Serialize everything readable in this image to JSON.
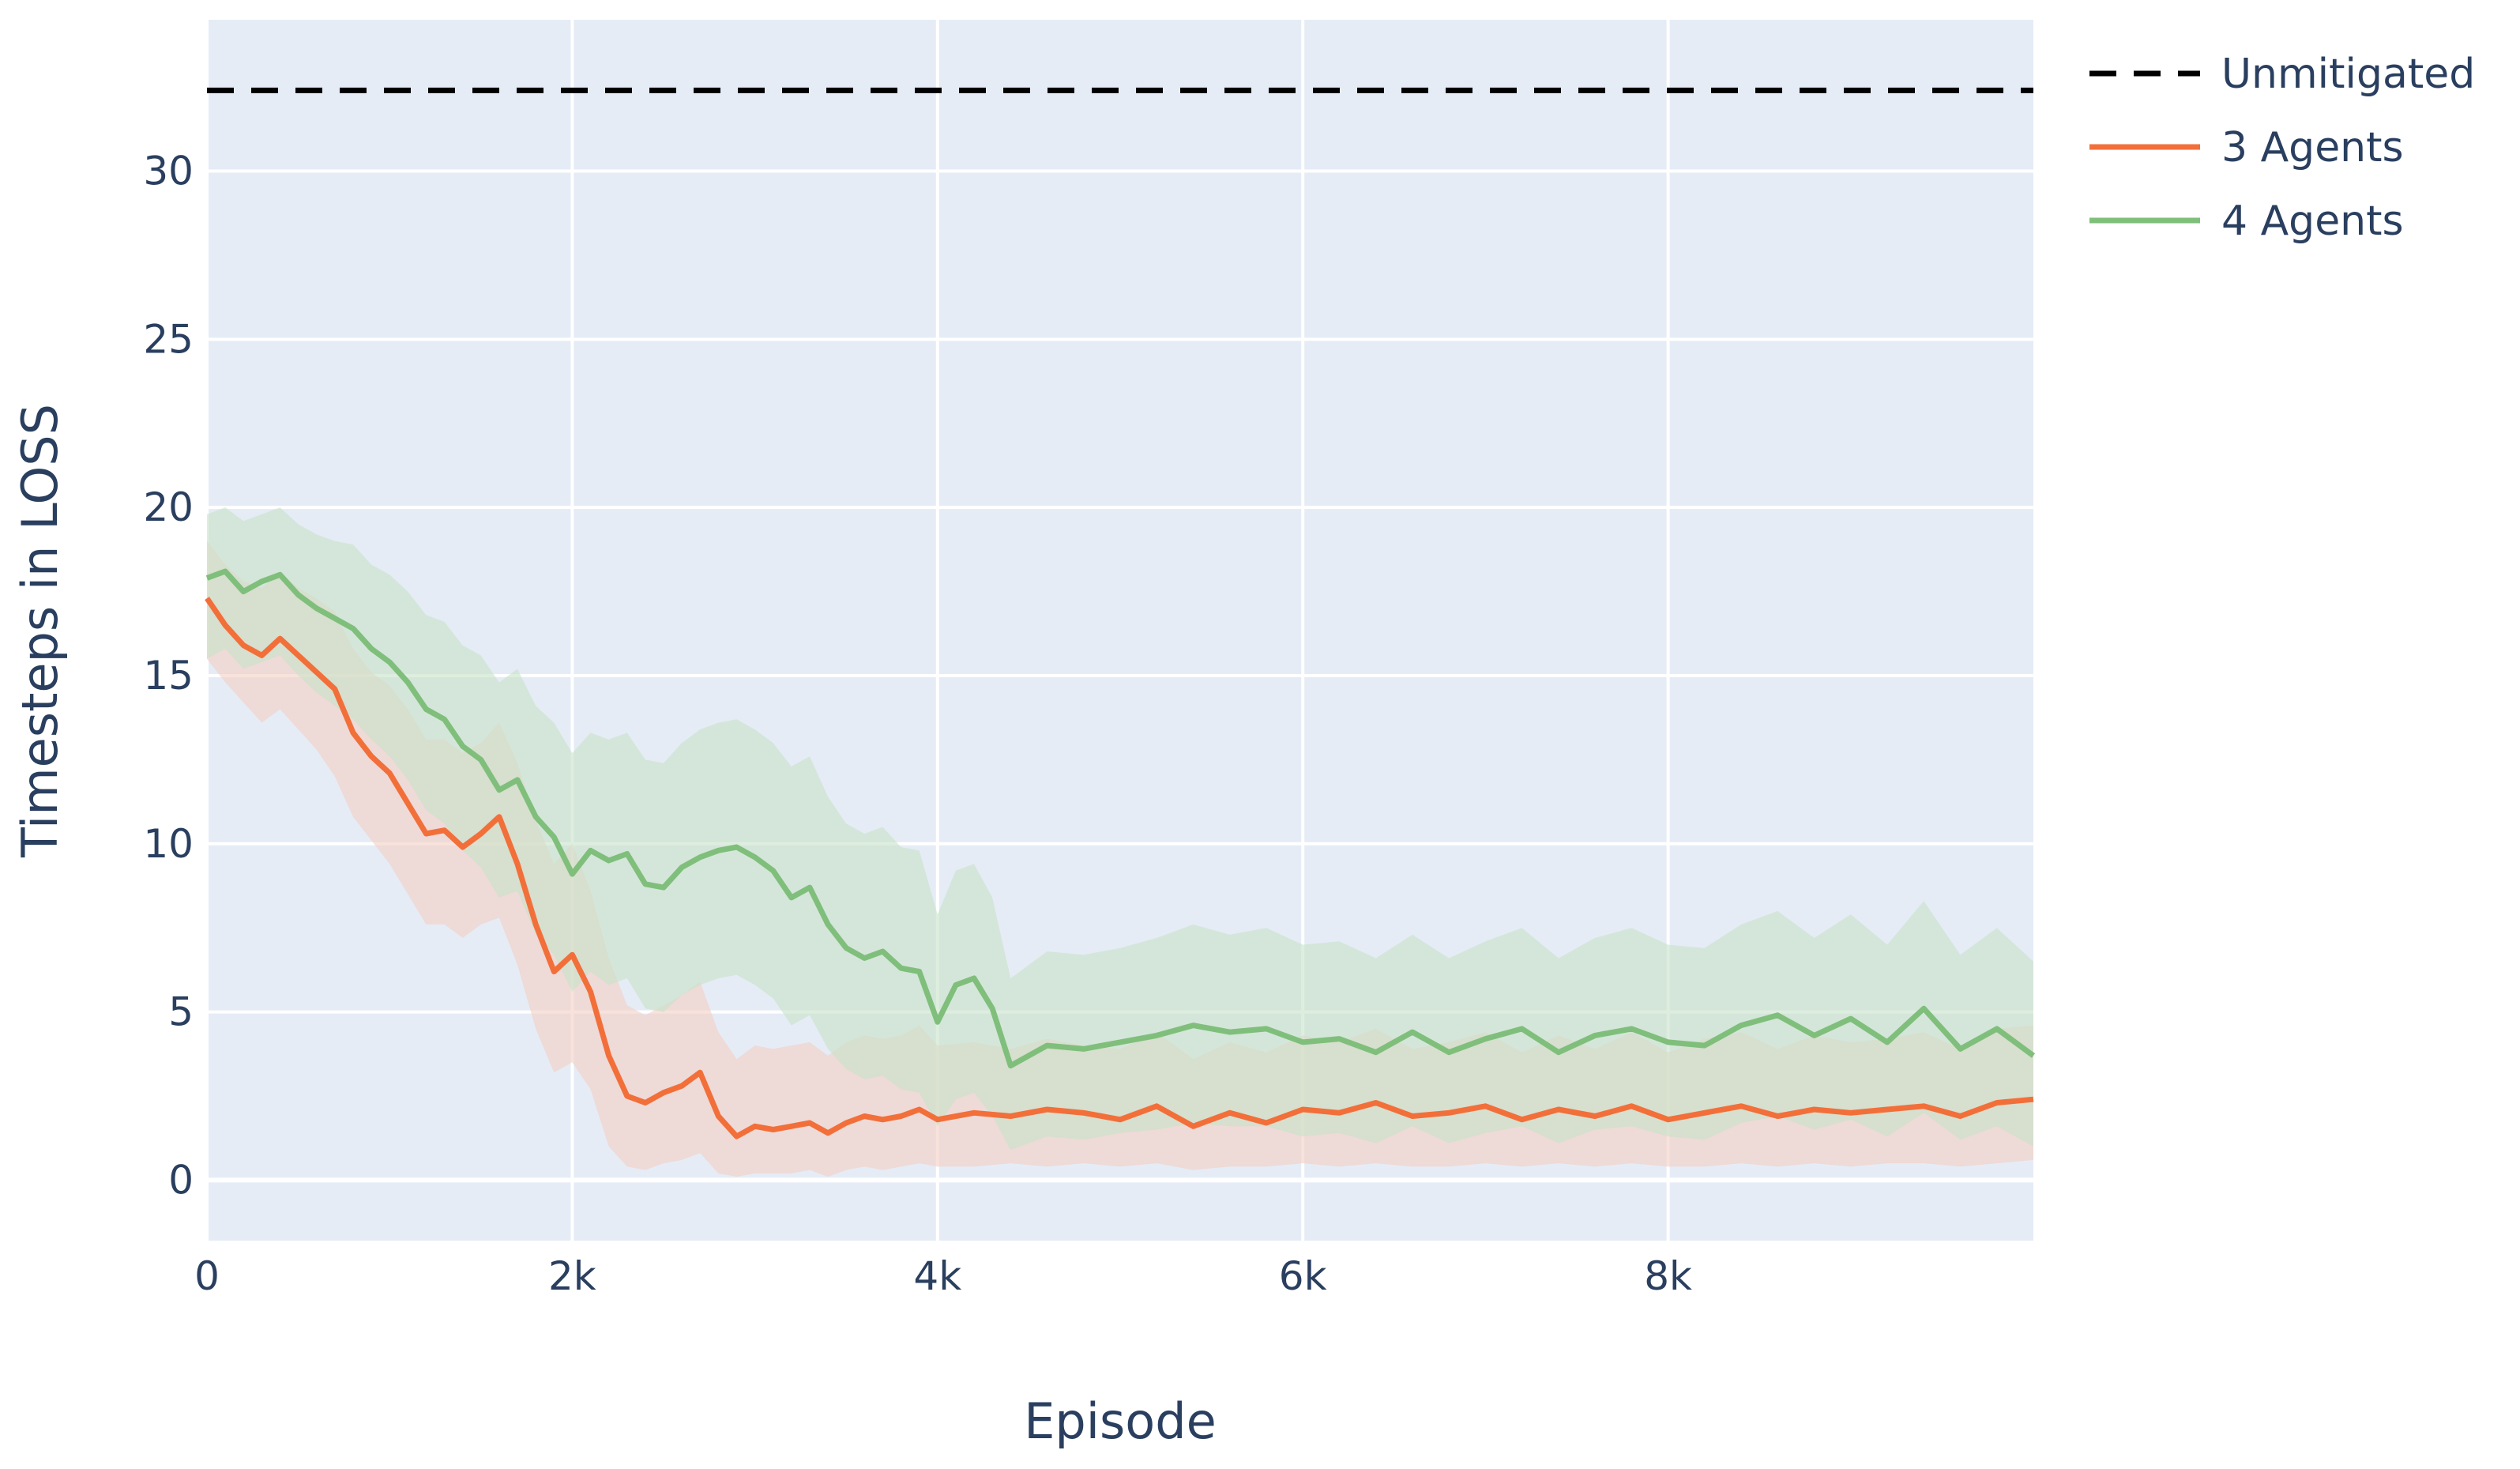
{
  "chart_data": {
    "type": "line",
    "title": "",
    "xlabel": "Episode",
    "ylabel": "Timesteps in LOSS",
    "xlim": [
      0,
      10000
    ],
    "ylim": [
      -1.8,
      34.5
    ],
    "x_ticks": [
      {
        "value": 0,
        "label": "0"
      },
      {
        "value": 2000,
        "label": "2k"
      },
      {
        "value": 4000,
        "label": "4k"
      },
      {
        "value": 6000,
        "label": "6k"
      },
      {
        "value": 8000,
        "label": "8k"
      }
    ],
    "y_ticks": [
      {
        "value": 0,
        "label": "0"
      },
      {
        "value": 5,
        "label": "5"
      },
      {
        "value": 10,
        "label": "10"
      },
      {
        "value": 15,
        "label": "15"
      },
      {
        "value": 20,
        "label": "20"
      },
      {
        "value": 25,
        "label": "25"
      },
      {
        "value": 30,
        "label": "30"
      }
    ],
    "grid": true,
    "legend_position": "top-right",
    "plot_bg": "#e5ecf6",
    "grid_color": "#ffffff",
    "series": [
      {
        "name": "Unmitigated",
        "style": "dashed",
        "color": "#000000",
        "x": [
          0,
          10000
        ],
        "y": [
          32.4,
          32.4
        ]
      },
      {
        "name": "3 Agents",
        "style": "solid",
        "color": "#f26f3a",
        "band_color": "#f4cfc3",
        "x": [
          0,
          100,
          200,
          300,
          400,
          500,
          600,
          700,
          800,
          900,
          1000,
          1100,
          1200,
          1300,
          1400,
          1500,
          1600,
          1700,
          1800,
          1900,
          2000,
          2100,
          2200,
          2300,
          2400,
          2500,
          2600,
          2700,
          2800,
          2900,
          3000,
          3100,
          3200,
          3300,
          3400,
          3500,
          3600,
          3700,
          3800,
          3900,
          4000,
          4200,
          4400,
          4600,
          4800,
          5000,
          5200,
          5400,
          5600,
          5800,
          6000,
          6200,
          6400,
          6600,
          6800,
          7000,
          7200,
          7400,
          7600,
          7800,
          8000,
          8200,
          8400,
          8600,
          8800,
          9000,
          9200,
          9400,
          9600,
          9800,
          10000
        ],
        "y": [
          17.3,
          16.5,
          15.9,
          15.6,
          16.1,
          15.6,
          15.1,
          14.6,
          13.3,
          12.6,
          12.1,
          11.2,
          10.3,
          10.4,
          9.9,
          10.3,
          10.8,
          9.4,
          7.6,
          6.2,
          6.7,
          5.6,
          3.7,
          2.5,
          2.3,
          2.6,
          2.8,
          3.2,
          1.9,
          1.3,
          1.6,
          1.5,
          1.6,
          1.7,
          1.4,
          1.7,
          1.9,
          1.8,
          1.9,
          2.1,
          1.8,
          2.0,
          1.9,
          2.1,
          2.0,
          1.8,
          2.2,
          1.6,
          2.0,
          1.7,
          2.1,
          2.0,
          2.3,
          1.9,
          2.0,
          2.2,
          1.8,
          2.1,
          1.9,
          2.2,
          1.8,
          2.0,
          2.2,
          1.9,
          2.1,
          2.0,
          2.1,
          2.2,
          1.9,
          2.3,
          2.4
        ],
        "band_low": [
          15.5,
          14.8,
          14.2,
          13.6,
          14.0,
          13.4,
          12.8,
          12.0,
          10.8,
          10.1,
          9.4,
          8.5,
          7.6,
          7.6,
          7.2,
          7.6,
          7.8,
          6.4,
          4.5,
          3.2,
          3.5,
          2.7,
          1.0,
          0.4,
          0.3,
          0.5,
          0.6,
          0.8,
          0.2,
          0.1,
          0.2,
          0.2,
          0.2,
          0.3,
          0.1,
          0.3,
          0.4,
          0.3,
          0.4,
          0.5,
          0.4,
          0.4,
          0.5,
          0.4,
          0.5,
          0.4,
          0.5,
          0.3,
          0.4,
          0.4,
          0.5,
          0.4,
          0.5,
          0.4,
          0.4,
          0.5,
          0.4,
          0.5,
          0.4,
          0.5,
          0.4,
          0.4,
          0.5,
          0.4,
          0.5,
          0.4,
          0.5,
          0.5,
          0.4,
          0.5,
          0.6
        ],
        "band_high": [
          19.0,
          18.3,
          17.8,
          17.6,
          18.1,
          17.6,
          17.3,
          16.9,
          15.8,
          15.1,
          14.7,
          14.0,
          13.1,
          13.1,
          12.7,
          13.0,
          13.6,
          12.4,
          10.7,
          9.4,
          10.0,
          8.6,
          6.6,
          5.2,
          4.9,
          5.2,
          5.5,
          5.9,
          4.4,
          3.6,
          4.0,
          3.9,
          4.0,
          4.1,
          3.7,
          4.1,
          4.3,
          4.2,
          4.3,
          4.6,
          4.0,
          4.1,
          3.9,
          4.2,
          4.0,
          3.9,
          4.4,
          3.6,
          4.1,
          3.8,
          4.3,
          4.1,
          4.5,
          3.9,
          4.1,
          4.4,
          3.8,
          4.3,
          3.9,
          4.4,
          3.8,
          4.2,
          4.4,
          3.9,
          4.3,
          4.1,
          4.2,
          4.4,
          3.9,
          4.5,
          4.6
        ]
      },
      {
        "name": "4 Agents",
        "style": "solid",
        "color": "#7fbf7b",
        "band_color": "#c8e2c8",
        "x": [
          0,
          100,
          200,
          300,
          400,
          500,
          600,
          700,
          800,
          900,
          1000,
          1100,
          1200,
          1300,
          1400,
          1500,
          1600,
          1700,
          1800,
          1900,
          2000,
          2100,
          2200,
          2300,
          2400,
          2500,
          2600,
          2700,
          2800,
          2900,
          3000,
          3100,
          3200,
          3300,
          3400,
          3500,
          3600,
          3700,
          3800,
          3900,
          4000,
          4100,
          4200,
          4300,
          4400,
          4600,
          4800,
          5000,
          5200,
          5400,
          5600,
          5800,
          6000,
          6200,
          6400,
          6600,
          6800,
          7000,
          7200,
          7400,
          7600,
          7800,
          8000,
          8200,
          8400,
          8600,
          8800,
          9000,
          9200,
          9400,
          9600,
          9800,
          10000
        ],
        "y": [
          17.9,
          18.1,
          17.5,
          17.8,
          18.0,
          17.4,
          17.0,
          16.7,
          16.4,
          15.8,
          15.4,
          14.8,
          14.0,
          13.7,
          12.9,
          12.5,
          11.6,
          11.9,
          10.8,
          10.2,
          9.1,
          9.8,
          9.5,
          9.7,
          8.8,
          8.7,
          9.3,
          9.6,
          9.8,
          9.9,
          9.6,
          9.2,
          8.4,
          8.7,
          7.6,
          6.9,
          6.6,
          6.8,
          6.3,
          6.2,
          4.7,
          5.8,
          6.0,
          5.1,
          3.4,
          4.0,
          3.9,
          4.1,
          4.3,
          4.6,
          4.4,
          4.5,
          4.1,
          4.2,
          3.8,
          4.4,
          3.8,
          4.2,
          4.5,
          3.8,
          4.3,
          4.5,
          4.1,
          4.0,
          4.6,
          4.9,
          4.3,
          4.8,
          4.1,
          5.1,
          3.9,
          4.5,
          3.7
        ],
        "band_low": [
          15.5,
          15.8,
          15.2,
          15.4,
          15.6,
          15.0,
          14.5,
          14.1,
          13.7,
          13.1,
          12.6,
          11.9,
          11.0,
          10.6,
          9.8,
          9.3,
          8.4,
          8.6,
          7.3,
          6.7,
          5.6,
          6.2,
          5.8,
          6.0,
          5.1,
          5.0,
          5.5,
          5.8,
          6.0,
          6.1,
          5.8,
          5.4,
          4.6,
          4.9,
          3.9,
          3.3,
          3.0,
          3.1,
          2.7,
          2.6,
          1.6,
          2.4,
          2.6,
          1.9,
          0.9,
          1.3,
          1.2,
          1.4,
          1.5,
          1.7,
          1.6,
          1.6,
          1.3,
          1.4,
          1.1,
          1.6,
          1.1,
          1.4,
          1.6,
          1.1,
          1.5,
          1.6,
          1.3,
          1.2,
          1.7,
          1.9,
          1.5,
          1.8,
          1.3,
          2.0,
          1.2,
          1.6,
          1.0
        ],
        "band_high": [
          19.8,
          20.0,
          19.6,
          19.8,
          20.0,
          19.5,
          19.2,
          19.0,
          18.9,
          18.3,
          18.0,
          17.5,
          16.8,
          16.6,
          15.9,
          15.6,
          14.8,
          15.2,
          14.1,
          13.6,
          12.7,
          13.3,
          13.1,
          13.3,
          12.5,
          12.4,
          13.0,
          13.4,
          13.6,
          13.7,
          13.4,
          13.0,
          12.3,
          12.6,
          11.4,
          10.6,
          10.3,
          10.5,
          9.9,
          9.8,
          7.9,
          9.2,
          9.4,
          8.4,
          6.0,
          6.8,
          6.7,
          6.9,
          7.2,
          7.6,
          7.3,
          7.5,
          7.0,
          7.1,
          6.6,
          7.3,
          6.6,
          7.1,
          7.5,
          6.6,
          7.2,
          7.5,
          7.0,
          6.9,
          7.6,
          8.0,
          7.2,
          7.9,
          7.0,
          8.3,
          6.7,
          7.5,
          6.5
        ]
      }
    ]
  }
}
